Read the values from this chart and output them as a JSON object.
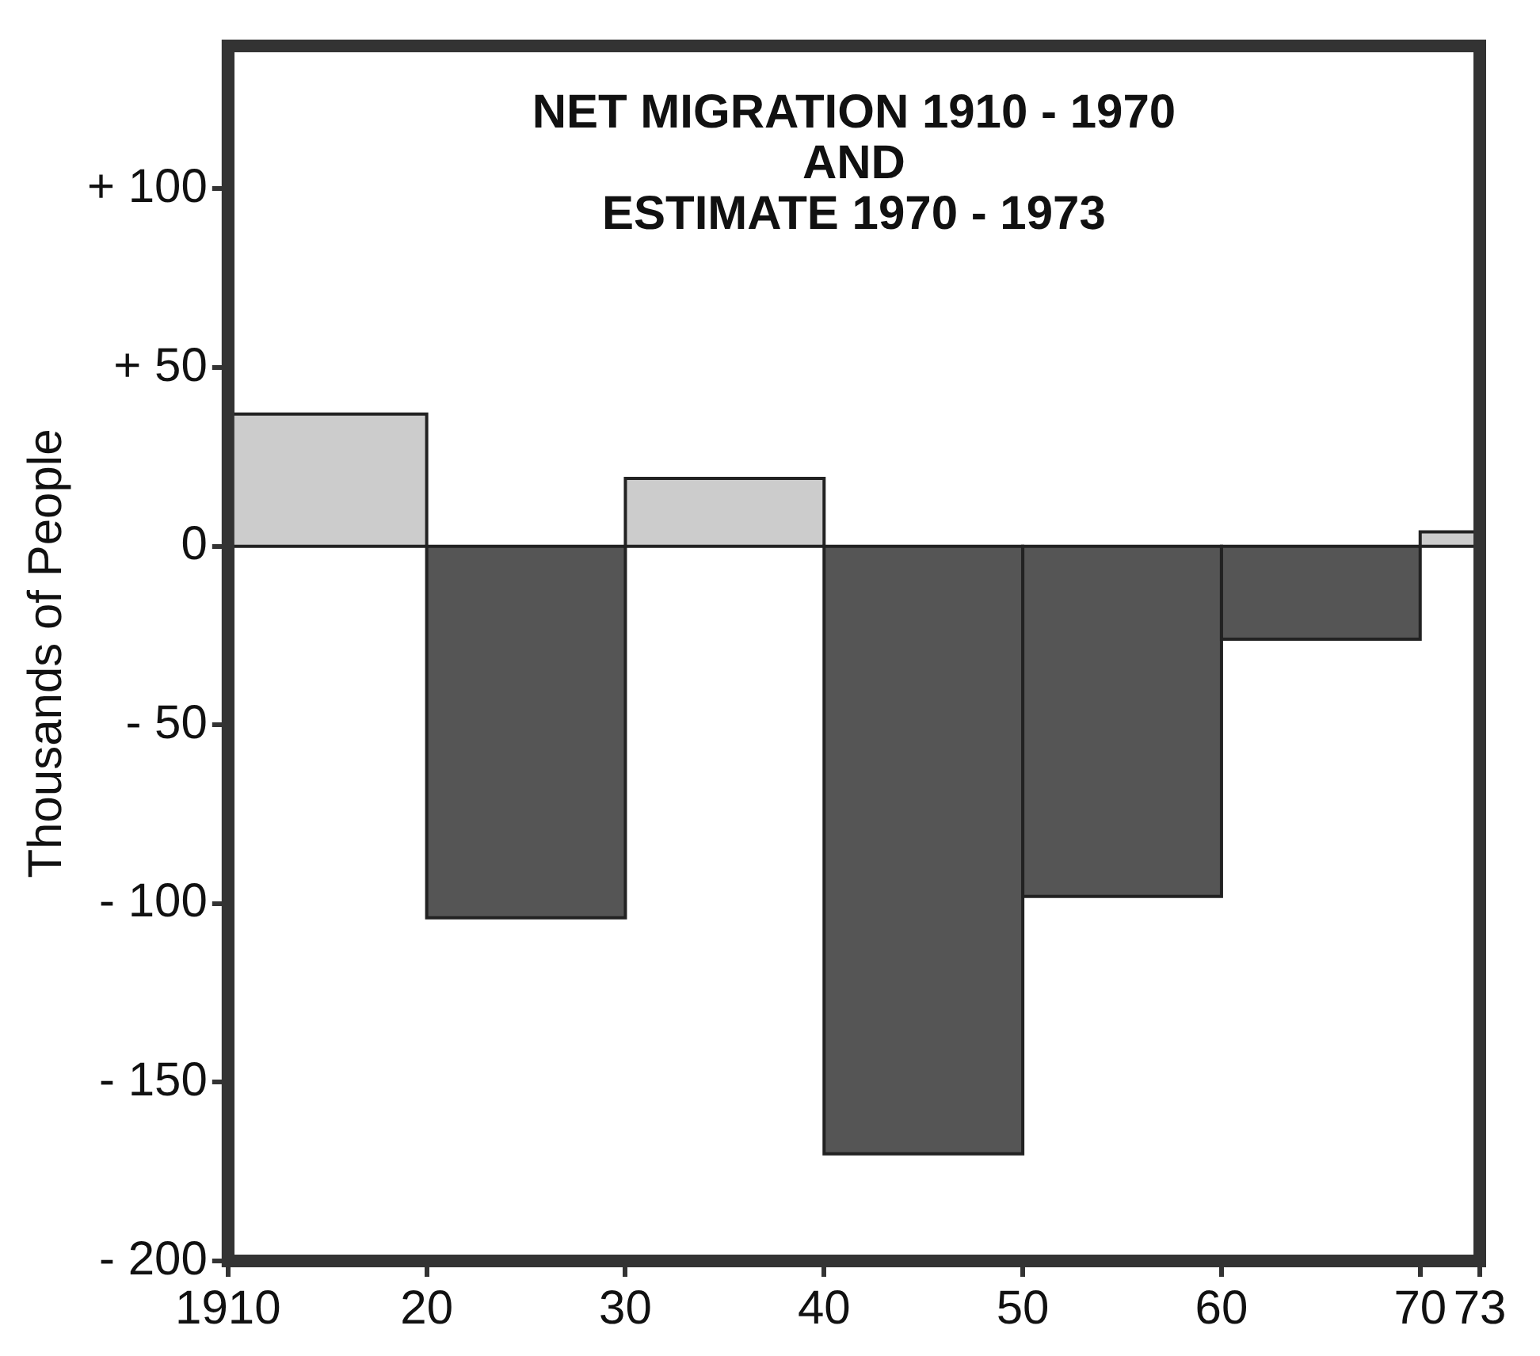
{
  "chart_data": {
    "type": "histogram",
    "title": "NET MIGRATION 1910 - 1970\nAND\nESTIMATE 1970 - 1973",
    "ylabel": "Thousands of People",
    "bins": [
      1910,
      1920,
      1930,
      1940,
      1950,
      1960,
      1970,
      1973
    ],
    "values": [
      37,
      -104,
      19,
      -170,
      -98,
      -26,
      4
    ],
    "colors": [
      "#cccccc",
      "#555555",
      "#cccccc",
      "#555555",
      "#555555",
      "#555555",
      "#cccccc"
    ],
    "xlim": [
      1910,
      1973
    ],
    "xticks": [
      1910,
      {
        "value": 1920,
        "label": "20"
      },
      {
        "value": 1930,
        "label": "30"
      },
      {
        "value": 1940,
        "label": "40"
      },
      {
        "value": 1950,
        "label": "50"
      },
      {
        "value": 1960,
        "label": "60"
      },
      {
        "value": 1970,
        "label": "70"
      },
      {
        "value": 1973,
        "label": "73"
      }
    ],
    "ylim": [
      -200,
      140
    ],
    "yticks": [
      {
        "value": -200,
        "label": "- 200"
      },
      {
        "value": -150,
        "label": "- 150"
      },
      {
        "value": -100,
        "label": "- 100"
      },
      {
        "value": -50,
        "label": "- 50"
      },
      0,
      {
        "value": 50,
        "label": "+ 50"
      },
      {
        "value": 100,
        "label": "+ 100"
      }
    ],
    "grid": false,
    "legend": false
  }
}
